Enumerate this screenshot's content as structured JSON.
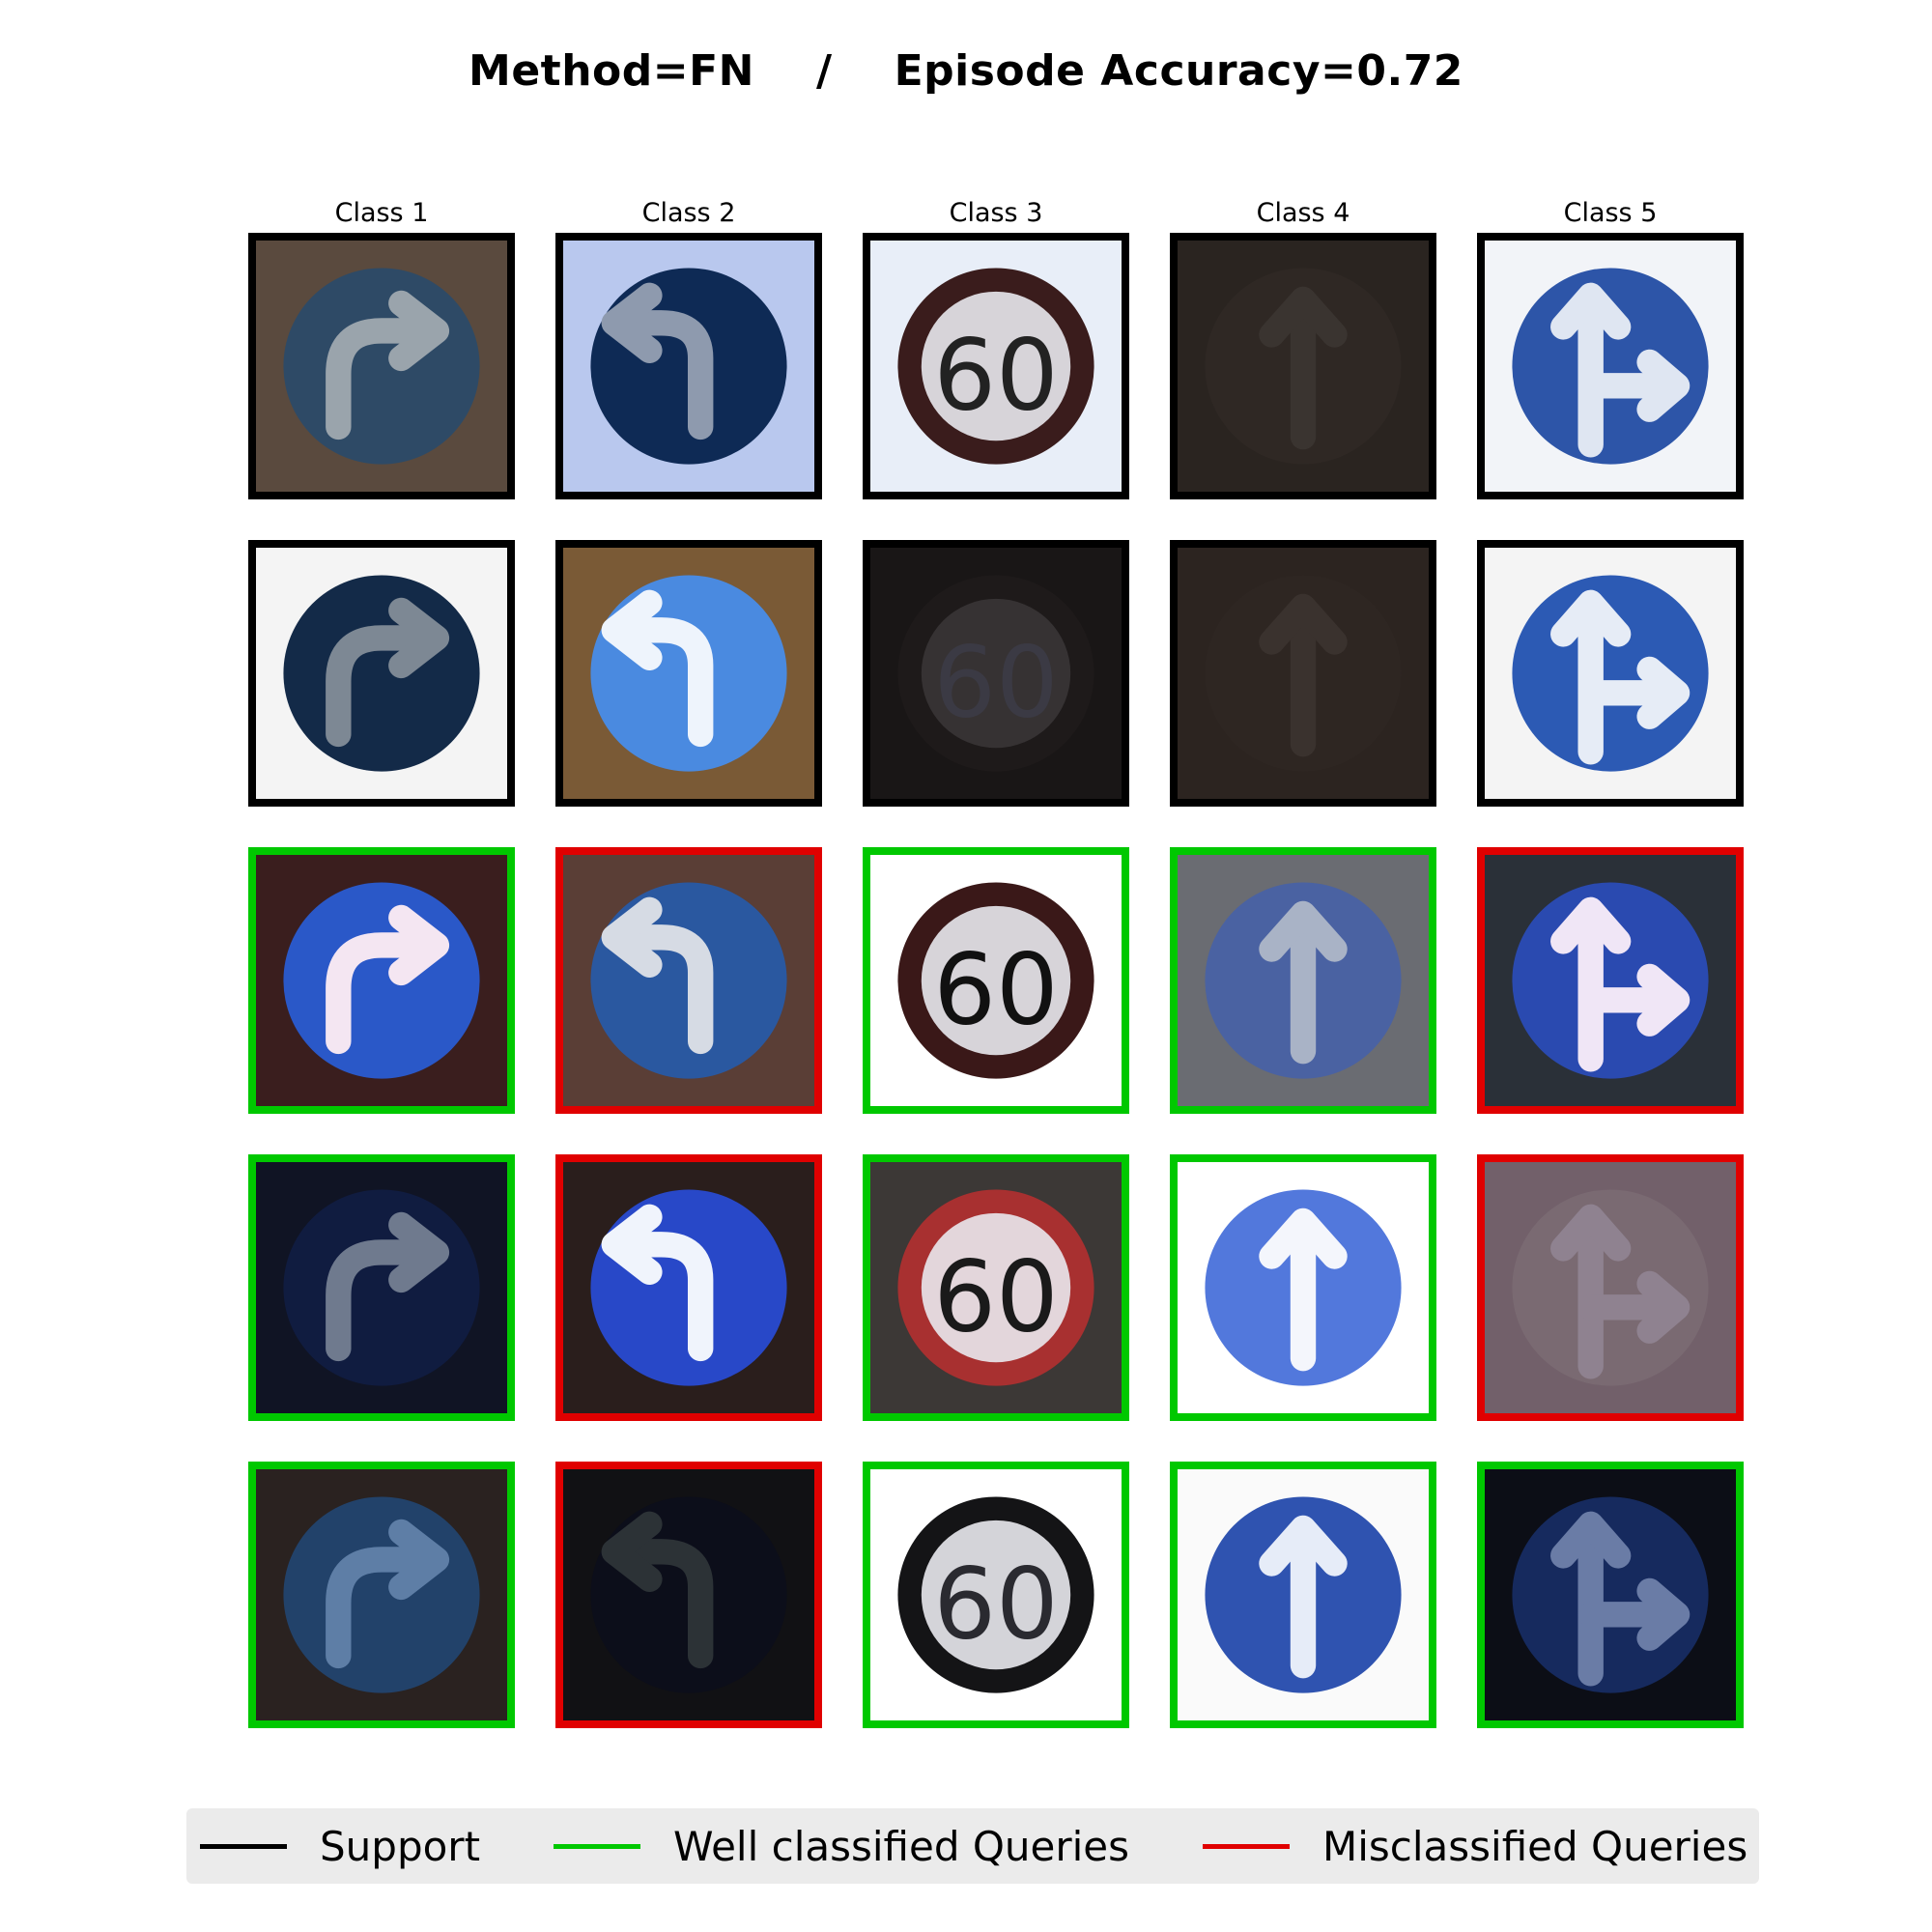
{
  "title": {
    "method": "Method=FN",
    "separator": "/",
    "accuracy": "Episode Accuracy=0.72"
  },
  "columns": [
    "Class 1",
    "Class 2",
    "Class 3",
    "Class 4",
    "Class 5"
  ],
  "colors": {
    "support": "#000000",
    "well_classified": "#00c800",
    "misclassified": "#e00000"
  },
  "grid": [
    [
      {
        "status": "support",
        "sign": "turn-right",
        "bg": "#5a4a3e",
        "disc": "#2e4a66",
        "glyph": "#9aa4ac"
      },
      {
        "status": "support",
        "sign": "turn-left",
        "bg": "#b9c8ee",
        "disc": "#0e2a55",
        "glyph": "#8e9aae"
      },
      {
        "status": "support",
        "sign": "speed-60",
        "bg": "#e8eef8",
        "disc": "#3a1c1c",
        "glyph": "#222"
      },
      {
        "status": "support",
        "sign": "straight",
        "bg": "#2a2420",
        "disc": "#2f2824",
        "glyph": "#3a3430"
      },
      {
        "status": "support",
        "sign": "straight-right",
        "bg": "#f2f4f8",
        "disc": "#2d55a8",
        "glyph": "#dfe6f2"
      }
    ],
    [
      {
        "status": "support",
        "sign": "turn-right",
        "bg": "#f4f4f4",
        "disc": "#132a48",
        "glyph": "#7d8894"
      },
      {
        "status": "support",
        "sign": "turn-left",
        "bg": "#7a5a36",
        "disc": "#4a8ae0",
        "glyph": "#eef4fc"
      },
      {
        "status": "support",
        "sign": "speed-60",
        "bg": "#191616",
        "disc": "#1e1a1a",
        "glyph": "#3b3a44"
      },
      {
        "status": "support",
        "sign": "straight",
        "bg": "#2c2420",
        "disc": "#2e2622",
        "glyph": "#3a322e"
      },
      {
        "status": "support",
        "sign": "straight-right",
        "bg": "#f4f4f4",
        "disc": "#2c5ab4",
        "glyph": "#e6ecf6"
      }
    ],
    [
      {
        "status": "ok",
        "sign": "turn-right",
        "bg": "#3a1e1e",
        "disc": "#2a58c8",
        "glyph": "#f4e6f2"
      },
      {
        "status": "bad",
        "sign": "turn-left",
        "bg": "#5a3e36",
        "disc": "#2a58a0",
        "glyph": "#d6dbe4"
      },
      {
        "status": "ok",
        "sign": "speed-60",
        "bg": "#ffffff",
        "disc": "#3a1818",
        "glyph": "#111"
      },
      {
        "status": "ok",
        "sign": "straight",
        "bg": "#6a6c72",
        "disc": "#4a62a2",
        "glyph": "#a9b3c6"
      },
      {
        "status": "bad",
        "sign": "straight-right",
        "bg": "#2a3038",
        "disc": "#2a4ab0",
        "glyph": "#f0e6f6"
      }
    ],
    [
      {
        "status": "ok",
        "sign": "turn-right",
        "bg": "#101424",
        "disc": "#101c40",
        "glyph": "#6f7a8e"
      },
      {
        "status": "bad",
        "sign": "turn-left",
        "bg": "#2a1e1c",
        "disc": "#2848c8",
        "glyph": "#f0f4fc"
      },
      {
        "status": "ok",
        "sign": "speed-60",
        "bg": "#3c3836",
        "disc": "#a83030",
        "glyph": "#1a1a1a"
      },
      {
        "status": "ok",
        "sign": "straight",
        "bg": "#ffffff",
        "disc": "#5278dc",
        "glyph": "#f4f6fc"
      },
      {
        "status": "bad",
        "sign": "straight-right",
        "bg": "#72606a",
        "disc": "#7a6a72",
        "glyph": "#8f8290"
      }
    ],
    [
      {
        "status": "ok",
        "sign": "turn-right",
        "bg": "#2a2220",
        "disc": "#22426a",
        "glyph": "#5e7ea6"
      },
      {
        "status": "bad",
        "sign": "turn-left",
        "bg": "#111114",
        "disc": "#0c0e1a",
        "glyph": "#2c3236"
      },
      {
        "status": "ok",
        "sign": "speed-60",
        "bg": "#ffffff",
        "disc": "#141416",
        "glyph": "#2a2a30"
      },
      {
        "status": "ok",
        "sign": "straight",
        "bg": "#fafafa",
        "disc": "#2f53b0",
        "glyph": "#e6ecf8"
      },
      {
        "status": "ok",
        "sign": "straight-right",
        "bg": "#0c0e16",
        "disc": "#162a5e",
        "glyph": "#6a7ca6"
      }
    ]
  ],
  "legend": [
    {
      "label": "Support",
      "color": "#000000"
    },
    {
      "label": "Well classified Queries",
      "color": "#00c800"
    },
    {
      "label": "Misclassified Queries",
      "color": "#e00000"
    }
  ]
}
